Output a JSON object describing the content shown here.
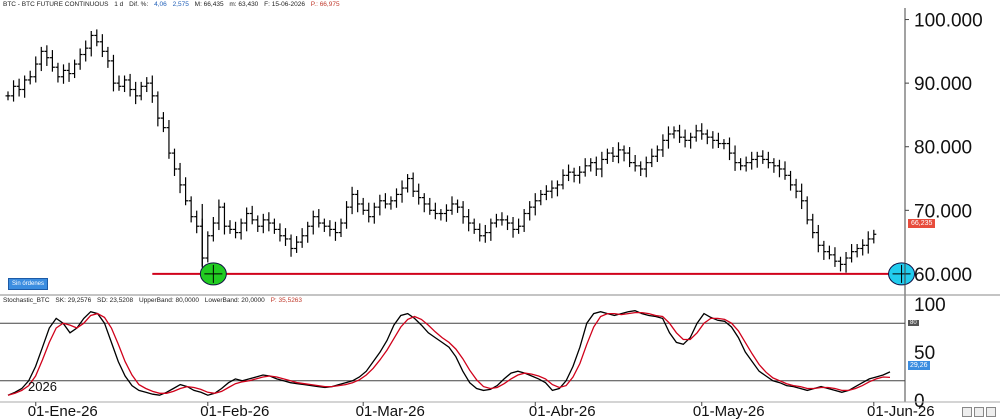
{
  "header": {
    "symbol": "BTC - BTC FUTURE CONTINUOUS",
    "interval": "1 d",
    "dif_label": "Dif. %:",
    "dif_value": "4,06",
    "dif2": "2,575",
    "max": "M: 66,435",
    "min": "m: 63,430",
    "date": "F: 15-06-2026",
    "price": "P.: 66,975"
  },
  "badge": "Sin órdenes",
  "price_tag": "66,235",
  "oscillator_header": {
    "name": "Stochastic_BTC",
    "sk": "SK: 29,2576",
    "sd": "SD: 23,5208",
    "upper": "UpperBand: 80,0000",
    "lower": "LowerBand: 20,0000",
    "p": "P: 35,5263"
  },
  "osc_tag": "29,26",
  "osc_tag2": "80",
  "year_label": "2026",
  "colors": {
    "bars": "#000000",
    "support_line": "#d0021b",
    "sk_line": "#000000",
    "sd_line": "#d0021b",
    "marker_left": "#22cc22",
    "marker_right": "#22ccee"
  },
  "chart_data": [
    {
      "type": "ohlc",
      "title": "BTC - BTC FUTURE CONTINUOUS",
      "ylim": [
        57000,
        101500
      ],
      "y_ticks": [
        "100.000",
        "90.000",
        "80.000",
        "70.000",
        "60.000"
      ],
      "y_tick_values": [
        100000,
        90000,
        80000,
        70000,
        60000
      ],
      "x_ticks": [
        "01-Ene-26",
        "01-Feb-26",
        "01-Mar-26",
        "01-Abr-26",
        "01-May-26",
        "01-Jun-26"
      ],
      "x_tick_index": [
        5,
        36,
        64,
        95,
        125,
        156
      ],
      "horizontal_line": {
        "value": 60000,
        "from_index": 26,
        "to_index": 167
      },
      "markers": [
        {
          "index": 37,
          "value": 60000,
          "color": "green"
        },
        {
          "index": 161,
          "value": 60000,
          "color": "cyan"
        }
      ],
      "last_price": "66,235",
      "closes": [
        88000,
        89500,
        89000,
        90500,
        91000,
        93000,
        95000,
        94000,
        92500,
        91000,
        92000,
        91500,
        93000,
        94500,
        95500,
        97500,
        96500,
        95000,
        93500,
        90000,
        89500,
        90500,
        89000,
        88000,
        89500,
        90000,
        88000,
        84500,
        83000,
        79000,
        76500,
        74000,
        71500,
        69000,
        67500,
        62500,
        66000,
        68000,
        70500,
        67500,
        67000,
        66500,
        68000,
        69500,
        68500,
        67500,
        68500,
        68000,
        67000,
        66000,
        65500,
        64000,
        65000,
        66000,
        67500,
        69000,
        68000,
        67500,
        67000,
        66500,
        68000,
        70500,
        72500,
        71000,
        70000,
        69000,
        70500,
        71500,
        71000,
        71500,
        72500,
        73500,
        75000,
        73000,
        72000,
        71000,
        70000,
        69500,
        69500,
        70000,
        71000,
        70500,
        69000,
        68000,
        67000,
        66000,
        66500,
        68000,
        68500,
        68500,
        68000,
        67000,
        67500,
        69500,
        70500,
        71500,
        72500,
        73000,
        73500,
        74000,
        75500,
        76000,
        75500,
        76000,
        77000,
        77500,
        76500,
        78000,
        79000,
        78500,
        79500,
        79000,
        77500,
        77000,
        76500,
        77500,
        78500,
        79500,
        81000,
        82000,
        82500,
        81500,
        81000,
        81500,
        82500,
        82000,
        81500,
        81000,
        80500,
        80500,
        79000,
        77500,
        77000,
        77500,
        78000,
        78500,
        78000,
        77500,
        77000,
        76500,
        75500,
        74000,
        73000,
        71500,
        68500,
        66500,
        64500,
        63500,
        63000,
        62000,
        61500,
        62500,
        63500,
        64000,
        64500,
        65500,
        66235
      ]
    },
    {
      "type": "line",
      "title": "Stochastic_BTC",
      "ylim": [
        0,
        100
      ],
      "y_ticks": [
        "100",
        "50",
        "0"
      ],
      "y_tick_values": [
        100,
        50,
        0
      ],
      "bands": [
        80,
        20
      ],
      "series": [
        {
          "name": "SK",
          "values": [
            5,
            8,
            12,
            20,
            35,
            55,
            75,
            85,
            80,
            70,
            75,
            85,
            92,
            90,
            80,
            60,
            40,
            25,
            15,
            10,
            8,
            6,
            5,
            8,
            12,
            16,
            14,
            10,
            8,
            5,
            7,
            12,
            18,
            22,
            20,
            22,
            24,
            26,
            25,
            22,
            20,
            18,
            17,
            16,
            15,
            14,
            13,
            14,
            16,
            18,
            20,
            24,
            30,
            40,
            50,
            62,
            78,
            88,
            90,
            85,
            78,
            70,
            65,
            60,
            55,
            45,
            30,
            18,
            12,
            10,
            11,
            15,
            22,
            28,
            30,
            28,
            25,
            22,
            18,
            10,
            12,
            20,
            35,
            55,
            80,
            90,
            92,
            90,
            88,
            90,
            92,
            93,
            90,
            88,
            87,
            85,
            70,
            60,
            58,
            65,
            80,
            90,
            86,
            83,
            82,
            76,
            65,
            50,
            40,
            30,
            25,
            20,
            18,
            15,
            14,
            12,
            10,
            12,
            14,
            12,
            10,
            8,
            10,
            14,
            18,
            22,
            24,
            26,
            29.26
          ]
        },
        {
          "name": "SD",
          "values": [
            5,
            7,
            10,
            15,
            25,
            42,
            60,
            75,
            80,
            78,
            75,
            80,
            88,
            90,
            86,
            75,
            58,
            40,
            26,
            16,
            12,
            9,
            7,
            7,
            9,
            12,
            14,
            13,
            11,
            8,
            7,
            9,
            13,
            17,
            19,
            20,
            22,
            24,
            25,
            24,
            22,
            20,
            18,
            17,
            16,
            15,
            14,
            14,
            15,
            16,
            18,
            21,
            26,
            33,
            42,
            52,
            64,
            76,
            84,
            87,
            84,
            78,
            71,
            65,
            60,
            53,
            43,
            31,
            21,
            14,
            12,
            13,
            17,
            22,
            26,
            28,
            27,
            25,
            22,
            16,
            13,
            15,
            24,
            38,
            58,
            76,
            87,
            90,
            90,
            89,
            90,
            91,
            91,
            90,
            88,
            87,
            80,
            70,
            63,
            63,
            70,
            80,
            85,
            85,
            84,
            80,
            72,
            60,
            48,
            37,
            29,
            23,
            20,
            17,
            15,
            14,
            12,
            12,
            13,
            13,
            12,
            10,
            10,
            12,
            15,
            19,
            22,
            24,
            23.52
          ]
        }
      ]
    }
  ]
}
